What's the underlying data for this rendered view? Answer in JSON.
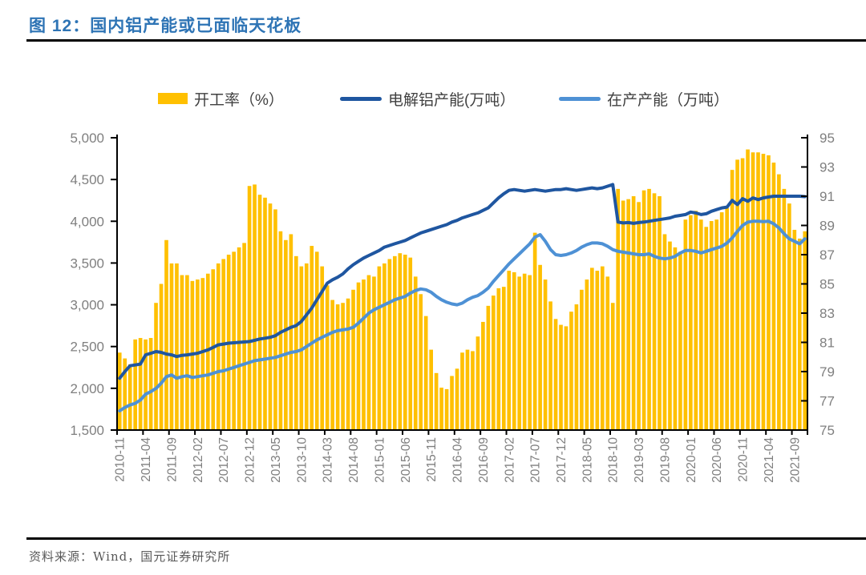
{
  "header": {
    "title": "图 12：国内铝产能或已面临天花板"
  },
  "legend": {
    "items": [
      {
        "label": "开工率（%）",
        "type": "bar",
        "color": "#FFC000"
      },
      {
        "label": "电解铝产能(万吨）",
        "type": "line",
        "color": "#1F56A0"
      },
      {
        "label": "在产产能（万吨）",
        "type": "line",
        "color": "#4E91D5"
      }
    ]
  },
  "footer": {
    "source": "资料来源：Wind，国元证券研究所"
  },
  "colors": {
    "title_blue": "#2E74B5",
    "bar_yellow": "#FFC000",
    "capacity_line_dark_blue": "#1F56A0",
    "operating_line_light_blue": "#4E91D5",
    "axis_text_gray": "#7f7f7f",
    "axis_line_black": "#000000"
  },
  "chart_data": {
    "type": "bar",
    "subtype": "combo bar + two lines, dual y-axes",
    "title": "国内铝产能或已面临天花板",
    "grid": false,
    "legend_position": "top",
    "n_points": 133,
    "tick_every": 5,
    "x_start": "2010-11",
    "x_end": "2021-11",
    "x_tick_labels": [
      "2010-11",
      "2011-04",
      "2011-09",
      "2012-02",
      "2012-07",
      "2012-12",
      "2013-05",
      "2013-10",
      "2014-03",
      "2014-08",
      "2015-01",
      "2015-06",
      "2015-11",
      "2016-04",
      "2016-09",
      "2017-02",
      "2017-07",
      "2017-12",
      "2018-05",
      "2018-10",
      "2019-03",
      "2019-08",
      "2020-01",
      "2020-06",
      "2020-11",
      "2021-04",
      "2021-09"
    ],
    "left_axis": {
      "min": 1500,
      "max": 5000,
      "step": 500,
      "tick_labels": [
        "5,000",
        "4,500",
        "4,000",
        "3,500",
        "3,000",
        "2,500",
        "2,000",
        "1,500"
      ]
    },
    "right_axis": {
      "min": 75,
      "max": 95,
      "step": 2,
      "tick_labels": [
        "95",
        "93",
        "91",
        "89",
        "87",
        "85",
        "83",
        "81",
        "79",
        "77",
        "75"
      ]
    },
    "series": [
      {
        "name": "开工率（%）",
        "axis": "right",
        "type": "bar",
        "color": "#FFC000",
        "values": [
          80.3,
          79.9,
          79.5,
          81.2,
          81.3,
          81.2,
          81.3,
          83.7,
          85.0,
          88.0,
          86.4,
          86.4,
          85.6,
          85.6,
          85.2,
          85.3,
          85.4,
          85.7,
          86.0,
          86.4,
          86.7,
          87.0,
          87.2,
          87.5,
          87.8,
          91.7,
          91.8,
          91.1,
          90.9,
          90.5,
          90.1,
          88.6,
          88.0,
          88.4,
          86.9,
          86.2,
          86.4,
          87.6,
          87.2,
          86.2,
          84.9,
          83.9,
          83.6,
          83.7,
          84.0,
          84.6,
          85.1,
          85.3,
          85.6,
          85.5,
          86.2,
          86.4,
          86.7,
          86.9,
          87.1,
          87.0,
          86.8,
          85.5,
          84.3,
          82.8,
          80.5,
          78.9,
          77.9,
          77.8,
          78.7,
          79.2,
          80.3,
          80.5,
          80.4,
          81.4,
          82.4,
          83.5,
          84.2,
          84.7,
          84.8,
          85.9,
          85.8,
          85.5,
          85.7,
          85.6,
          88.5,
          86.3,
          85.3,
          83.8,
          82.6,
          82.2,
          82.1,
          83.1,
          83.6,
          84.6,
          85.3,
          86.1,
          85.9,
          86.2,
          85.5,
          83.7,
          91.5,
          90.7,
          90.8,
          91.0,
          90.6,
          91.4,
          91.5,
          91.2,
          91.0,
          88.4,
          87.9,
          87.5,
          87.2,
          89.4,
          89.7,
          90.0,
          89.4,
          88.9,
          89.3,
          89.4,
          89.9,
          90.2,
          92.8,
          93.5,
          93.6,
          94.2,
          94.0,
          94.0,
          93.9,
          93.8,
          93.3,
          92.5,
          91.5,
          90.5,
          88.7,
          88.1,
          88.6
        ]
      },
      {
        "name": "电解铝产能(万吨）",
        "axis": "left",
        "type": "line",
        "color": "#1F56A0",
        "values": [
          2120,
          2200,
          2270,
          2280,
          2290,
          2400,
          2420,
          2440,
          2430,
          2410,
          2400,
          2380,
          2395,
          2400,
          2410,
          2420,
          2440,
          2460,
          2490,
          2520,
          2530,
          2540,
          2545,
          2550,
          2555,
          2560,
          2575,
          2590,
          2600,
          2610,
          2630,
          2670,
          2700,
          2730,
          2750,
          2800,
          2880,
          2960,
          3060,
          3160,
          3260,
          3300,
          3330,
          3370,
          3430,
          3480,
          3520,
          3560,
          3590,
          3620,
          3650,
          3690,
          3710,
          3730,
          3750,
          3770,
          3800,
          3830,
          3860,
          3880,
          3900,
          3920,
          3940,
          3960,
          3990,
          4010,
          4040,
          4060,
          4080,
          4100,
          4130,
          4160,
          4220,
          4280,
          4330,
          4370,
          4380,
          4370,
          4360,
          4370,
          4380,
          4370,
          4360,
          4370,
          4380,
          4380,
          4390,
          4380,
          4370,
          4380,
          4390,
          4400,
          4390,
          4400,
          4420,
          4440,
          3990,
          3980,
          3985,
          3975,
          3985,
          3990,
          4000,
          4010,
          4020,
          4030,
          4040,
          4060,
          4070,
          4080,
          4110,
          4100,
          4080,
          4090,
          4120,
          4140,
          4160,
          4170,
          4250,
          4200,
          4270,
          4240,
          4280,
          4260,
          4280,
          4290,
          4300,
          4300,
          4300,
          4300,
          4300,
          4300,
          4295
        ]
      },
      {
        "name": "在产产能（万吨）",
        "axis": "left",
        "type": "line",
        "color": "#4E91D5",
        "values": [
          1730,
          1770,
          1800,
          1820,
          1860,
          1930,
          1960,
          2000,
          2060,
          2140,
          2160,
          2120,
          2140,
          2150,
          2130,
          2140,
          2150,
          2160,
          2180,
          2200,
          2210,
          2230,
          2250,
          2270,
          2290,
          2310,
          2330,
          2340,
          2350,
          2360,
          2370,
          2390,
          2410,
          2430,
          2440,
          2460,
          2500,
          2540,
          2580,
          2610,
          2640,
          2670,
          2690,
          2700,
          2710,
          2730,
          2780,
          2840,
          2900,
          2940,
          2970,
          3000,
          3030,
          3060,
          3080,
          3100,
          3140,
          3170,
          3190,
          3180,
          3150,
          3100,
          3060,
          3030,
          3010,
          3000,
          3020,
          3060,
          3090,
          3110,
          3150,
          3200,
          3280,
          3350,
          3420,
          3490,
          3550,
          3610,
          3670,
          3730,
          3810,
          3840,
          3760,
          3660,
          3600,
          3590,
          3600,
          3620,
          3650,
          3690,
          3720,
          3740,
          3740,
          3730,
          3700,
          3660,
          3640,
          3630,
          3620,
          3610,
          3600,
          3600,
          3610,
          3580,
          3560,
          3550,
          3560,
          3580,
          3620,
          3650,
          3650,
          3640,
          3620,
          3640,
          3660,
          3680,
          3700,
          3740,
          3800,
          3880,
          3950,
          3990,
          4000,
          4000,
          3995,
          4000,
          3970,
          3920,
          3850,
          3790,
          3760,
          3730,
          3790
        ]
      }
    ]
  }
}
